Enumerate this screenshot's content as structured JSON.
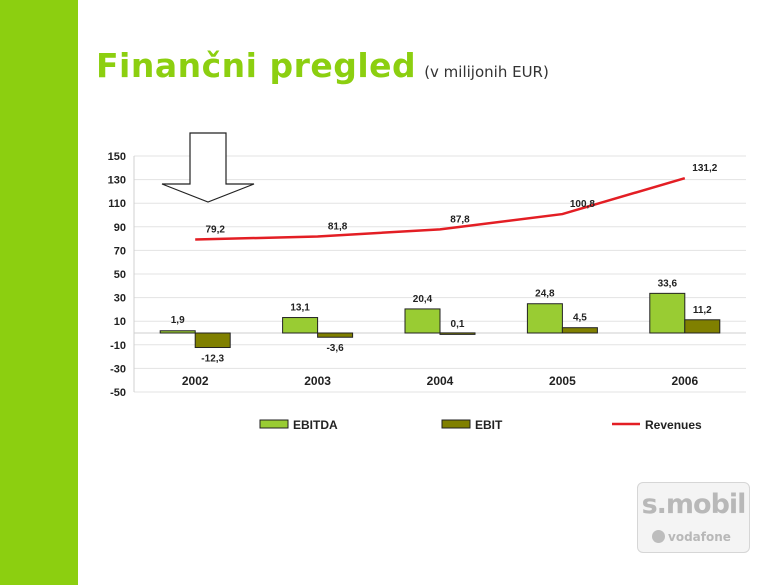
{
  "slide": {
    "title": "Finančni pregled",
    "subtitle": "(v milijonih EUR)"
  },
  "colors": {
    "accent": "#8ccf10",
    "ebitda": "#99cc33",
    "ebit": "#808000",
    "revenues": "#e31e24"
  },
  "logo": {
    "top_text": "s.mobil",
    "bottom_text": "vodafone"
  },
  "chart_data": {
    "type": "bar",
    "title": "",
    "xlabel": "",
    "ylabel": "",
    "categories": [
      "2002",
      "2003",
      "2004",
      "2005",
      "2006"
    ],
    "ylim": [
      -50,
      150
    ],
    "yticks": [
      150,
      130,
      110,
      90,
      70,
      50,
      30,
      10,
      -10,
      -30,
      -50
    ],
    "grid": true,
    "legend_position": "bottom",
    "series": [
      {
        "name": "EBITDA",
        "kind": "bar",
        "values": [
          1.9,
          13.1,
          20.4,
          24.8,
          33.6
        ],
        "labels": [
          "1,9",
          "13,1",
          "20,4",
          "24,8",
          "33,6"
        ]
      },
      {
        "name": "EBIT",
        "kind": "bar",
        "values": [
          -12.3,
          -3.6,
          0.1,
          4.5,
          11.2
        ],
        "labels": [
          "-12,3",
          "-3,6",
          "0,1",
          "4,5",
          "11,2"
        ]
      },
      {
        "name": "Revenues",
        "kind": "line",
        "values": [
          79.2,
          81.8,
          87.8,
          100.8,
          131.2
        ],
        "labels": [
          "79,2",
          "81,8",
          "87,8",
          "100,8",
          "131,2"
        ]
      }
    ],
    "annotations": [
      {
        "type": "arrow-down",
        "points_to": "2002"
      }
    ]
  }
}
